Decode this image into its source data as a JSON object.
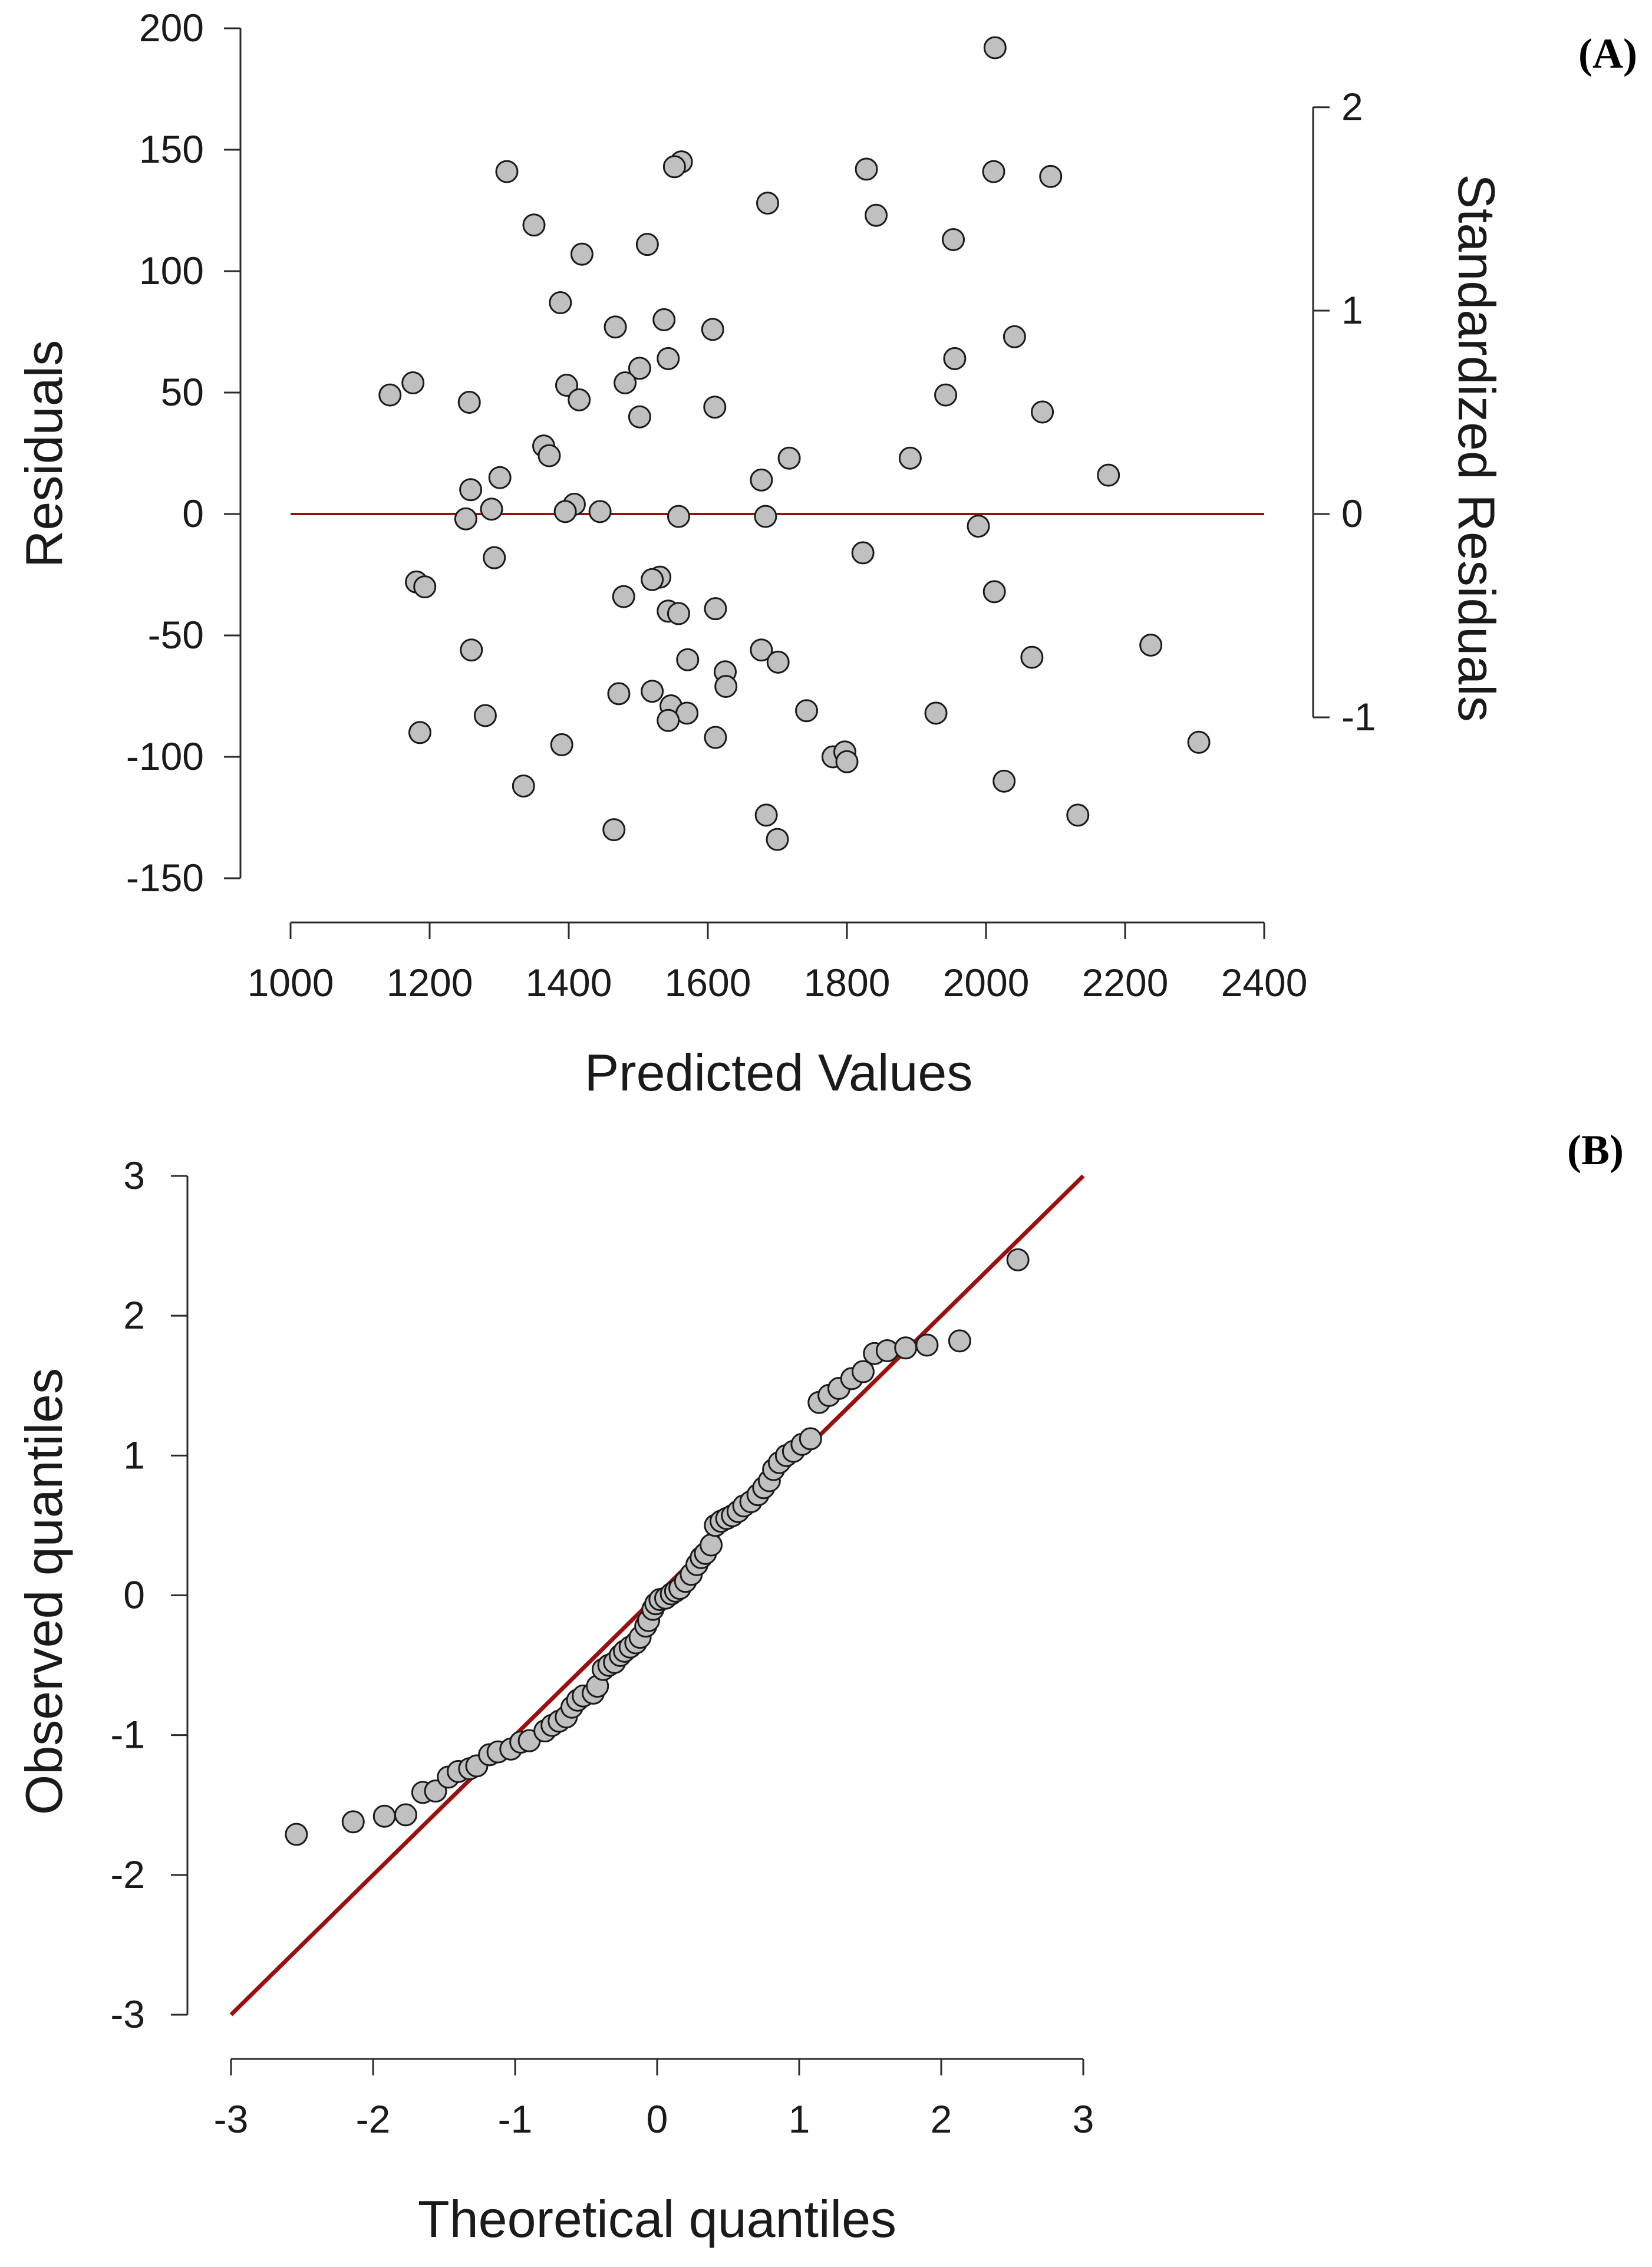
{
  "colors": {
    "point_fill": "#c0c0c0",
    "point_stroke": "#1a1a1a",
    "line": "#9b0f0f",
    "axis": "#2a2a2a",
    "text": "#1a1a1a"
  },
  "chart_data": [
    {
      "type": "scatter",
      "panel_label": "(A)",
      "xlabel": "Predicted Values",
      "ylabel": "Residuals",
      "y2label": "Standardized Residuals",
      "xlim": [
        1000,
        2400
      ],
      "ylim": [
        -150,
        200
      ],
      "xticks": [
        1000,
        1200,
        1400,
        1600,
        1800,
        2000,
        2200,
        2400
      ],
      "yticks": [
        -150,
        -100,
        -50,
        0,
        50,
        100,
        150,
        200
      ],
      "y2ticks": [
        -1,
        0,
        1,
        2
      ],
      "y2_per_residual": 0.01194,
      "reference_line": {
        "y": 0,
        "x_from": 1000,
        "x_to": 2400
      },
      "points": [
        [
          2013,
          192
        ],
        [
          1562,
          145
        ],
        [
          1552,
          143
        ],
        [
          1828,
          142
        ],
        [
          1311,
          141
        ],
        [
          2011,
          141
        ],
        [
          2093,
          139
        ],
        [
          1686,
          128
        ],
        [
          1842,
          123
        ],
        [
          1350,
          119
        ],
        [
          1953,
          113
        ],
        [
          1513,
          111
        ],
        [
          1419,
          107
        ],
        [
          1388,
          87
        ],
        [
          1537,
          80
        ],
        [
          1467,
          77
        ],
        [
          1607,
          76
        ],
        [
          2041,
          73
        ],
        [
          1543,
          64
        ],
        [
          1955,
          64
        ],
        [
          1502,
          60
        ],
        [
          1481,
          54
        ],
        [
          1397,
          53
        ],
        [
          1176,
          54
        ],
        [
          1143,
          49
        ],
        [
          1942,
          49
        ],
        [
          1415,
          47
        ],
        [
          1257,
          46
        ],
        [
          1610,
          44
        ],
        [
          2081,
          42
        ],
        [
          1502,
          40
        ],
        [
          1364,
          28
        ],
        [
          1372,
          24
        ],
        [
          1717,
          23
        ],
        [
          1891,
          23
        ],
        [
          2176,
          16
        ],
        [
          1301,
          15
        ],
        [
          1677,
          14
        ],
        [
          1259,
          10
        ],
        [
          1408,
          4
        ],
        [
          1289,
          2
        ],
        [
          1395,
          1
        ],
        [
          1445,
          1
        ],
        [
          1558,
          -1
        ],
        [
          1683,
          -1
        ],
        [
          1252,
          -2
        ],
        [
          1989,
          -5
        ],
        [
          1823,
          -16
        ],
        [
          1293,
          -18
        ],
        [
          1181,
          -28
        ],
        [
          1531,
          -26
        ],
        [
          1520,
          -27
        ],
        [
          1193,
          -30
        ],
        [
          2012,
          -32
        ],
        [
          1479,
          -34
        ],
        [
          1611,
          -39
        ],
        [
          1543,
          -40
        ],
        [
          1558,
          -41
        ],
        [
          1260,
          -56
        ],
        [
          1677,
          -56
        ],
        [
          2237,
          -54
        ],
        [
          2066,
          -59
        ],
        [
          1571,
          -60
        ],
        [
          1701,
          -61
        ],
        [
          1625,
          -65
        ],
        [
          1626,
          -71
        ],
        [
          1520,
          -73
        ],
        [
          1472,
          -74
        ],
        [
          1547,
          -79
        ],
        [
          1570,
          -82
        ],
        [
          1742,
          -81
        ],
        [
          1928,
          -82
        ],
        [
          1280,
          -83
        ],
        [
          1543,
          -85
        ],
        [
          1186,
          -90
        ],
        [
          1611,
          -92
        ],
        [
          2306,
          -94
        ],
        [
          1390,
          -95
        ],
        [
          1780,
          -100
        ],
        [
          1797,
          -98
        ],
        [
          1800,
          -102
        ],
        [
          2026,
          -110
        ],
        [
          1335,
          -112
        ],
        [
          1684,
          -124
        ],
        [
          2132,
          -124
        ],
        [
          1465,
          -130
        ],
        [
          1700,
          -134
        ]
      ]
    },
    {
      "type": "scatter",
      "panel_label": "(B)",
      "xlabel": "Theoretical quantiles",
      "ylabel": "Observed quantiles",
      "xlim": [
        -3,
        3
      ],
      "ylim": [
        -3,
        3
      ],
      "xticks": [
        -3,
        -2,
        -1,
        0,
        1,
        2,
        3
      ],
      "yticks": [
        -3,
        -2,
        -1,
        0,
        1,
        2,
        3
      ],
      "reference_line": {
        "from": [
          -3,
          -3
        ],
        "to": [
          3,
          3
        ]
      },
      "points": [
        [
          -2.54,
          -1.71
        ],
        [
          -2.14,
          -1.62
        ],
        [
          -1.92,
          -1.58
        ],
        [
          -1.77,
          -1.57
        ],
        [
          -1.65,
          -1.41
        ],
        [
          -1.56,
          -1.4
        ],
        [
          -1.47,
          -1.3
        ],
        [
          -1.4,
          -1.26
        ],
        [
          -1.32,
          -1.24
        ],
        [
          -1.27,
          -1.22
        ],
        [
          -1.18,
          -1.14
        ],
        [
          -1.12,
          -1.12
        ],
        [
          -1.03,
          -1.1
        ],
        [
          -0.96,
          -1.05
        ],
        [
          -0.9,
          -1.04
        ],
        [
          -0.79,
          -0.97
        ],
        [
          -0.74,
          -0.93
        ],
        [
          -0.69,
          -0.9
        ],
        [
          -0.64,
          -0.87
        ],
        [
          -0.6,
          -0.8
        ],
        [
          -0.56,
          -0.75
        ],
        [
          -0.52,
          -0.72
        ],
        [
          -0.45,
          -0.7
        ],
        [
          -0.42,
          -0.65
        ],
        [
          -0.38,
          -0.53
        ],
        [
          -0.34,
          -0.5
        ],
        [
          -0.3,
          -0.48
        ],
        [
          -0.26,
          -0.43
        ],
        [
          -0.23,
          -0.4
        ],
        [
          -0.19,
          -0.37
        ],
        [
          -0.15,
          -0.34
        ],
        [
          -0.12,
          -0.3
        ],
        [
          -0.08,
          -0.22
        ],
        [
          -0.06,
          -0.18
        ],
        [
          -0.03,
          -0.1
        ],
        [
          -0.01,
          -0.06
        ],
        [
          0.02,
          -0.03
        ],
        [
          0.06,
          -0.02
        ],
        [
          0.1,
          0.01
        ],
        [
          0.13,
          0.03
        ],
        [
          0.16,
          0.05
        ],
        [
          0.2,
          0.1
        ],
        [
          0.24,
          0.15
        ],
        [
          0.28,
          0.22
        ],
        [
          0.31,
          0.27
        ],
        [
          0.34,
          0.3
        ],
        [
          0.38,
          0.36
        ],
        [
          0.41,
          0.5
        ],
        [
          0.45,
          0.53
        ],
        [
          0.49,
          0.55
        ],
        [
          0.53,
          0.57
        ],
        [
          0.57,
          0.6
        ],
        [
          0.61,
          0.64
        ],
        [
          0.66,
          0.67
        ],
        [
          0.71,
          0.72
        ],
        [
          0.75,
          0.77
        ],
        [
          0.79,
          0.82
        ],
        [
          0.82,
          0.9
        ],
        [
          0.86,
          0.95
        ],
        [
          0.91,
          1.0
        ],
        [
          0.96,
          1.03
        ],
        [
          1.02,
          1.08
        ],
        [
          1.08,
          1.12
        ],
        [
          1.14,
          1.38
        ],
        [
          1.21,
          1.43
        ],
        [
          1.28,
          1.48
        ],
        [
          1.37,
          1.55
        ],
        [
          1.45,
          1.6
        ],
        [
          1.53,
          1.73
        ],
        [
          1.62,
          1.75
        ],
        [
          1.75,
          1.77
        ],
        [
          1.9,
          1.79
        ],
        [
          2.13,
          1.82
        ],
        [
          2.54,
          2.4
        ]
      ]
    }
  ]
}
